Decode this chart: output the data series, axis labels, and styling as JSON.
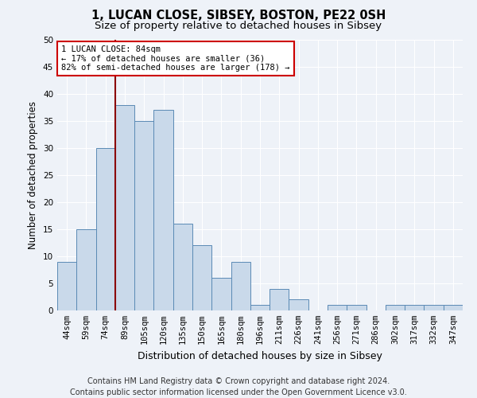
{
  "title1": "1, LUCAN CLOSE, SIBSEY, BOSTON, PE22 0SH",
  "title2": "Size of property relative to detached houses in Sibsey",
  "xlabel": "Distribution of detached houses by size in Sibsey",
  "ylabel": "Number of detached properties",
  "categories": [
    "44sqm",
    "59sqm",
    "74sqm",
    "89sqm",
    "105sqm",
    "120sqm",
    "135sqm",
    "150sqm",
    "165sqm",
    "180sqm",
    "196sqm",
    "211sqm",
    "226sqm",
    "241sqm",
    "256sqm",
    "271sqm",
    "286sqm",
    "302sqm",
    "317sqm",
    "332sqm",
    "347sqm"
  ],
  "values": [
    9,
    15,
    30,
    38,
    35,
    37,
    16,
    12,
    6,
    9,
    1,
    4,
    2,
    0,
    1,
    1,
    0,
    1,
    1,
    1,
    1
  ],
  "bar_color": "#c9d9ea",
  "bar_edge_color": "#5a8ab5",
  "vline_color": "#8b0000",
  "annotation_text": "1 LUCAN CLOSE: 84sqm\n← 17% of detached houses are smaller (36)\n82% of semi-detached houses are larger (178) →",
  "annotation_box_color": "#ffffff",
  "annotation_box_edge": "#cc0000",
  "ylim": [
    0,
    50
  ],
  "yticks": [
    0,
    5,
    10,
    15,
    20,
    25,
    30,
    35,
    40,
    45,
    50
  ],
  "footer1": "Contains HM Land Registry data © Crown copyright and database right 2024.",
  "footer2": "Contains public sector information licensed under the Open Government Licence v3.0.",
  "bg_color": "#eef2f8",
  "plot_bg_color": "#eef2f8",
  "grid_color": "#ffffff",
  "title1_fontsize": 10.5,
  "title2_fontsize": 9.5,
  "xlabel_fontsize": 9,
  "ylabel_fontsize": 8.5,
  "tick_fontsize": 7.5,
  "footer_fontsize": 7,
  "annot_fontsize": 7.5
}
